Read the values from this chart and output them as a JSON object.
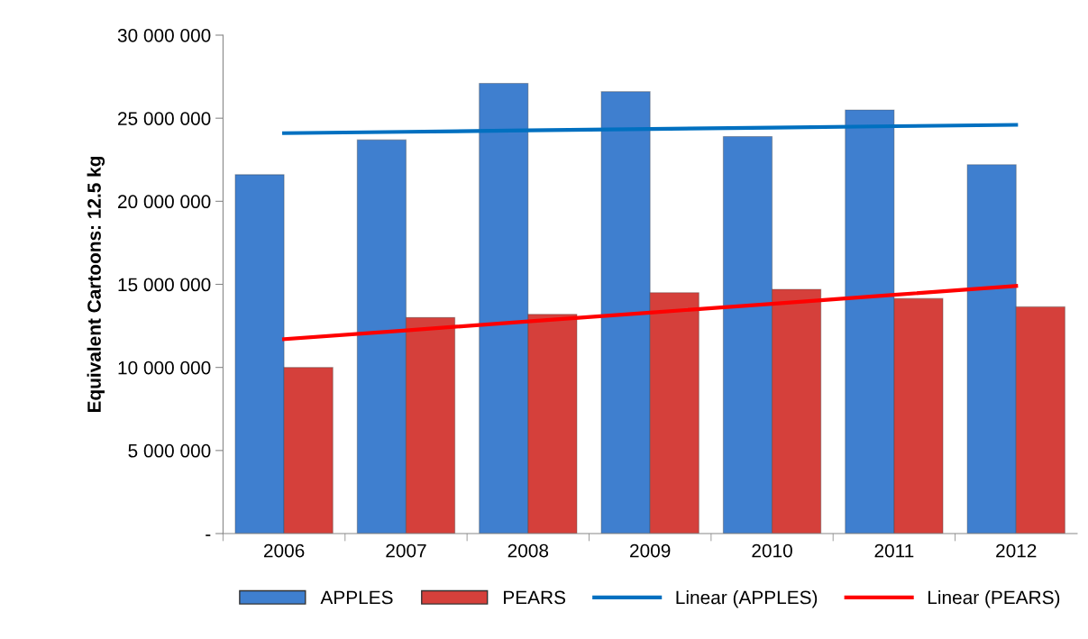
{
  "chart_data": {
    "type": "bar",
    "ylabel": "Equivalent Cartoons: 12.5 kg",
    "categories": [
      "2006",
      "2007",
      "2008",
      "2009",
      "2010",
      "2011",
      "2012"
    ],
    "series": [
      {
        "name": "APPLES",
        "color": "#3f7fcf",
        "values": [
          21600000,
          23700000,
          27100000,
          26600000,
          23900000,
          25500000,
          22200000
        ]
      },
      {
        "name": "PEARS",
        "color": "#d5403b",
        "values": [
          10000000,
          13000000,
          13200000,
          14500000,
          14700000,
          14150000,
          13650000
        ]
      },
      {
        "name": "Linear (APPLES)",
        "type": "line",
        "color": "#0070c0",
        "values": [
          24100000,
          24180000,
          24270000,
          24350000,
          24430000,
          24520000,
          24600000
        ]
      },
      {
        "name": "Linear (PEARS)",
        "type": "line",
        "color": "#ff0000",
        "values": [
          11700000,
          12230000,
          12770000,
          13300000,
          13830000,
          14370000,
          14900000
        ]
      }
    ],
    "ylim": [
      0,
      30000000
    ],
    "yticks": [
      {
        "value": 0,
        "label": "-"
      },
      {
        "value": 5000000,
        "label": "5 000 000"
      },
      {
        "value": 10000000,
        "label": "10 000 000"
      },
      {
        "value": 15000000,
        "label": "15 000 000"
      },
      {
        "value": 20000000,
        "label": "20 000 000"
      },
      {
        "value": 25000000,
        "label": "25 000 000"
      },
      {
        "value": 30000000,
        "label": "30 000 000"
      }
    ],
    "grid": false,
    "legend": "bottom"
  }
}
